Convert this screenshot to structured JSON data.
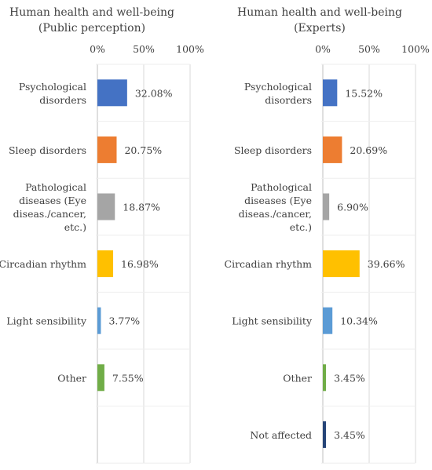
{
  "chart_data": [
    {
      "type": "bar",
      "orientation": "horizontal",
      "title": "Human health and well-being",
      "subtitle": "(Public perception)",
      "tick_labels": [
        "0%",
        "50%",
        "100%"
      ],
      "xlim": [
        0,
        100
      ],
      "grid": true,
      "categories": [
        [
          "Psychological",
          "disorders"
        ],
        [
          "Sleep disorders"
        ],
        [
          "Pathological",
          "diseases (Eye",
          "diseas./cancer,",
          "etc.)"
        ],
        [
          "Circadian rhythm"
        ],
        [
          "Light sensibility"
        ],
        [
          "Other"
        ],
        []
      ],
      "values": [
        32.08,
        20.75,
        18.87,
        16.98,
        3.77,
        7.55,
        null
      ],
      "value_labels": [
        "32.08%",
        "20.75%",
        "18.87%",
        "16.98%",
        "3.77%",
        "7.55%",
        ""
      ],
      "colors": [
        "#4472C4",
        "#ED7D31",
        "#A5A5A5",
        "#FFC000",
        "#5B9BD5",
        "#70AD47",
        "#264478"
      ]
    },
    {
      "type": "bar",
      "orientation": "horizontal",
      "title": "Human health and well-being",
      "subtitle": "(Experts)",
      "tick_labels": [
        "0%",
        "50%",
        "100%"
      ],
      "xlim": [
        0,
        100
      ],
      "grid": true,
      "categories": [
        [
          "Psychological",
          "disorders"
        ],
        [
          "Sleep disorders"
        ],
        [
          "Pathological",
          "diseases (Eye",
          "diseas./cancer,",
          "etc.)"
        ],
        [
          "Circadian rhythm"
        ],
        [
          "Light sensibility"
        ],
        [
          "Other"
        ],
        [
          "Not affected"
        ]
      ],
      "values": [
        15.52,
        20.69,
        6.9,
        39.66,
        10.34,
        3.45,
        3.45
      ],
      "value_labels": [
        "15.52%",
        "20.69%",
        "6.90%",
        "39.66%",
        "10.34%",
        "3.45%",
        "3.45%"
      ],
      "colors": [
        "#4472C4",
        "#ED7D31",
        "#A5A5A5",
        "#FFC000",
        "#5B9BD5",
        "#70AD47",
        "#264478"
      ]
    }
  ]
}
